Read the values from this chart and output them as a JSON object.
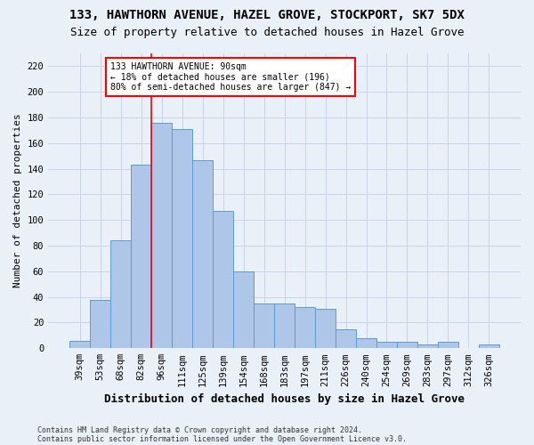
{
  "title1": "133, HAWTHORN AVENUE, HAZEL GROVE, STOCKPORT, SK7 5DX",
  "title2": "Size of property relative to detached houses in Hazel Grove",
  "xlabel": "Distribution of detached houses by size in Hazel Grove",
  "ylabel": "Number of detached properties",
  "footnote1": "Contains HM Land Registry data © Crown copyright and database right 2024.",
  "footnote2": "Contains public sector information licensed under the Open Government Licence v3.0.",
  "categories": [
    "39sqm",
    "53sqm",
    "68sqm",
    "82sqm",
    "96sqm",
    "111sqm",
    "125sqm",
    "139sqm",
    "154sqm",
    "168sqm",
    "183sqm",
    "197sqm",
    "211sqm",
    "226sqm",
    "240sqm",
    "254sqm",
    "269sqm",
    "283sqm",
    "297sqm",
    "312sqm",
    "326sqm"
  ],
  "values": [
    6,
    38,
    84,
    143,
    176,
    171,
    147,
    107,
    60,
    35,
    35,
    32,
    31,
    15,
    8,
    5,
    5,
    3,
    5,
    0,
    3
  ],
  "bar_color": "#aec6e8",
  "bar_edge_color": "#5b9bd5",
  "grid_color": "#c8d4e8",
  "vline_color": "red",
  "vline_x_index": 3.5,
  "annotation_text": "133 HAWTHORN AVENUE: 90sqm\n← 18% of detached houses are smaller (196)\n80% of semi-detached houses are larger (847) →",
  "annotation_box_facecolor": "white",
  "annotation_box_edgecolor": "red",
  "ylim": [
    0,
    230
  ],
  "yticks": [
    0,
    20,
    40,
    60,
    80,
    100,
    120,
    140,
    160,
    180,
    200,
    220
  ],
  "background_color": "#eaf0f8",
  "title_fontsize": 10,
  "subtitle_fontsize": 9,
  "xlabel_fontsize": 9,
  "ylabel_fontsize": 8,
  "tick_fontsize": 7.5,
  "annotation_fontsize": 7,
  "footnote_fontsize": 6
}
